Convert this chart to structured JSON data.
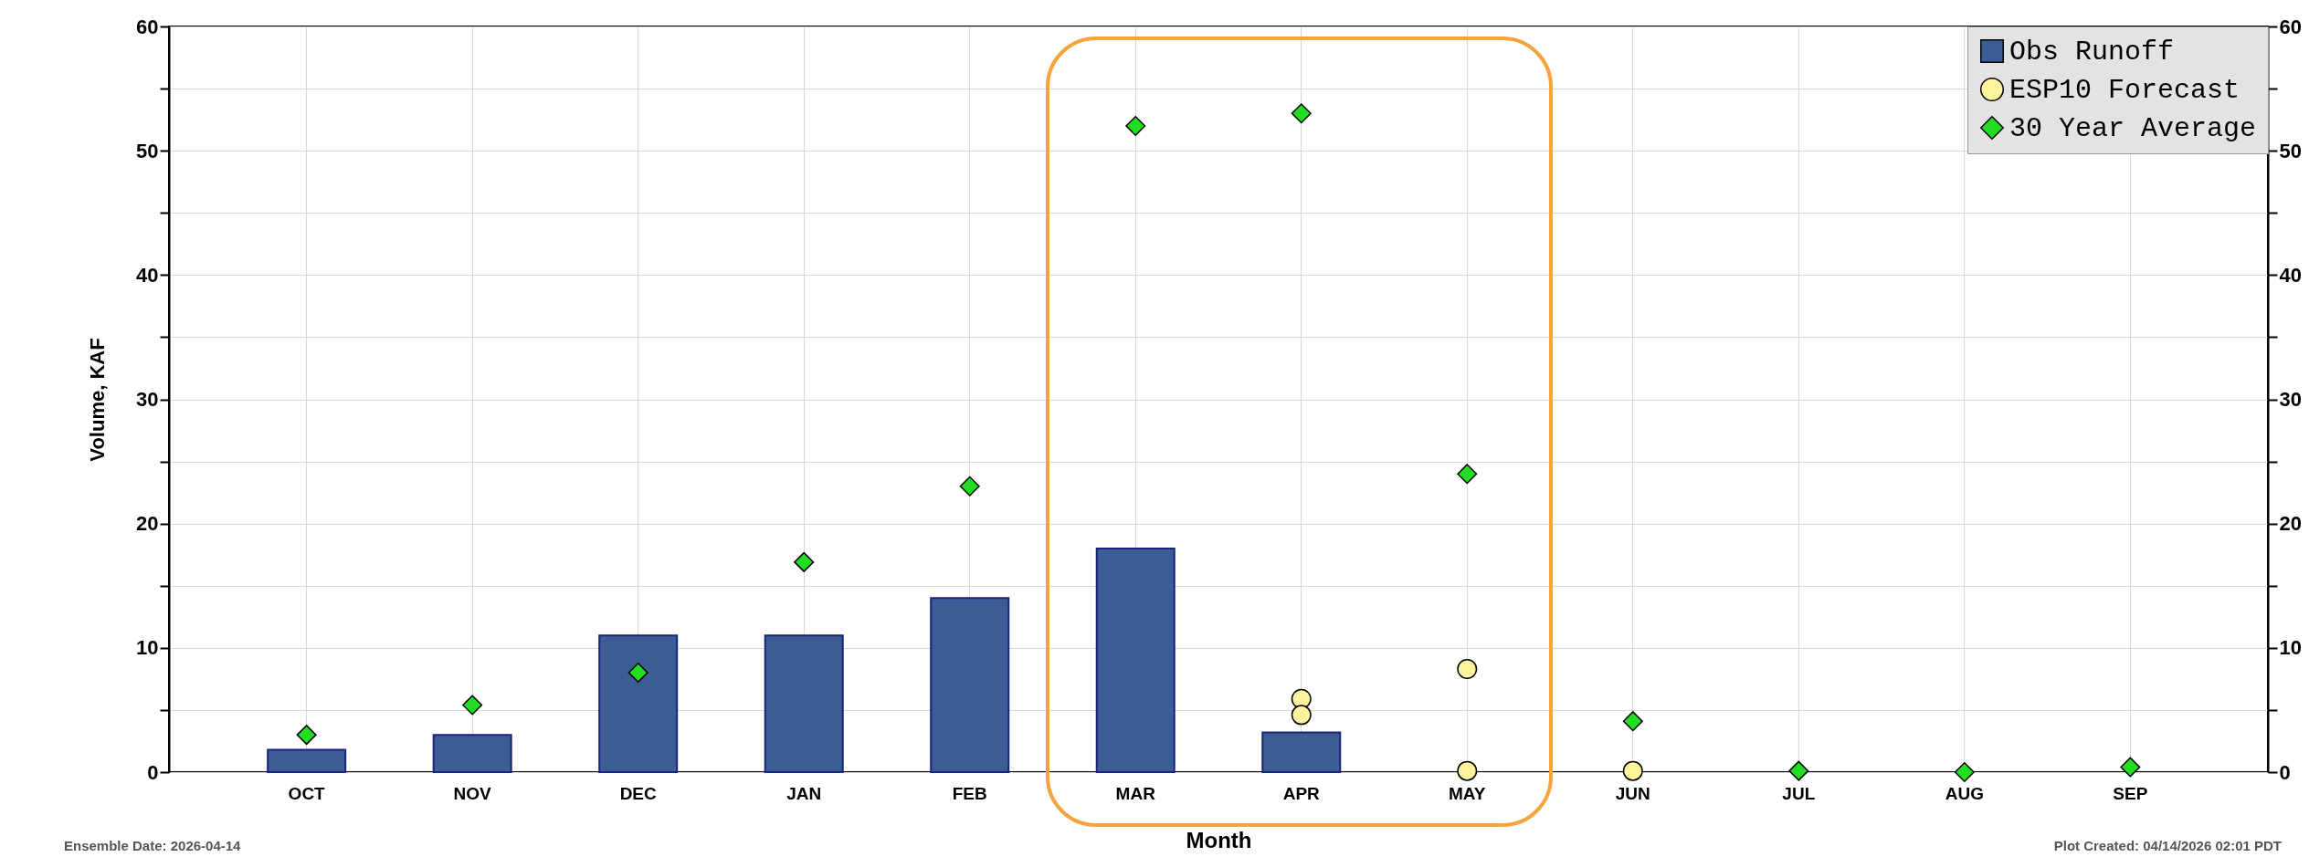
{
  "chart_data": {
    "type": "bar",
    "xlabel": "Month",
    "ylabel": "Volume, KAF",
    "categories": [
      "OCT",
      "NOV",
      "DEC",
      "JAN",
      "FEB",
      "MAR",
      "APR",
      "MAY",
      "JUN",
      "JUL",
      "AUG",
      "SEP"
    ],
    "series": [
      {
        "name": "Obs Runoff",
        "color": "#3b5c94",
        "values": [
          1.8,
          3.0,
          11,
          11,
          14,
          18,
          3.2,
          null,
          null,
          null,
          null,
          null
        ]
      },
      {
        "name": "ESP10 Forecast",
        "type": "scatter",
        "marker": "circle",
        "color": "#fff59d",
        "values": [
          null,
          null,
          null,
          null,
          null,
          null,
          5.9,
          8.3,
          null,
          null,
          null,
          null
        ]
      },
      {
        "type": "scatter",
        "marker": "circle",
        "color": "#fff59d",
        "values": [
          null,
          null,
          null,
          null,
          null,
          null,
          4.6,
          0.1,
          0.1,
          null,
          null,
          null
        ]
      },
      {
        "name": "30 Year Average",
        "type": "scatter",
        "marker": "diamond",
        "color": "#22dd22",
        "values": [
          3.0,
          5.4,
          8.0,
          16.9,
          23,
          52,
          53,
          24,
          4.1,
          0.1,
          0,
          0.4
        ]
      }
    ],
    "ylim": [
      0,
      60
    ],
    "yticks": [
      0,
      {
        "value": 5,
        "label": null
      },
      10,
      {
        "value": 15,
        "label": null
      },
      20,
      {
        "value": 25,
        "label": null
      },
      30,
      {
        "value": 35,
        "label": null
      },
      40,
      {
        "value": 45,
        "label": null
      },
      50,
      {
        "value": 55,
        "label": null
      },
      60
    ],
    "y2lim": [
      0,
      60
    ],
    "y2ticks": [
      0,
      {
        "value": 5,
        "label": null
      },
      10,
      {
        "value": 15,
        "label": null
      },
      20,
      {
        "value": 25,
        "label": null
      },
      30,
      {
        "value": 35,
        "label": null
      },
      40,
      {
        "value": 45,
        "label": null
      },
      50,
      {
        "value": 55,
        "label": null
      },
      60
    ],
    "grid": true,
    "legend": "top right",
    "annotations": [
      "Ensemble Date: 2026-04-14",
      "Plot Created: 04/14/2026 02:01 PDT"
    ]
  }
}
